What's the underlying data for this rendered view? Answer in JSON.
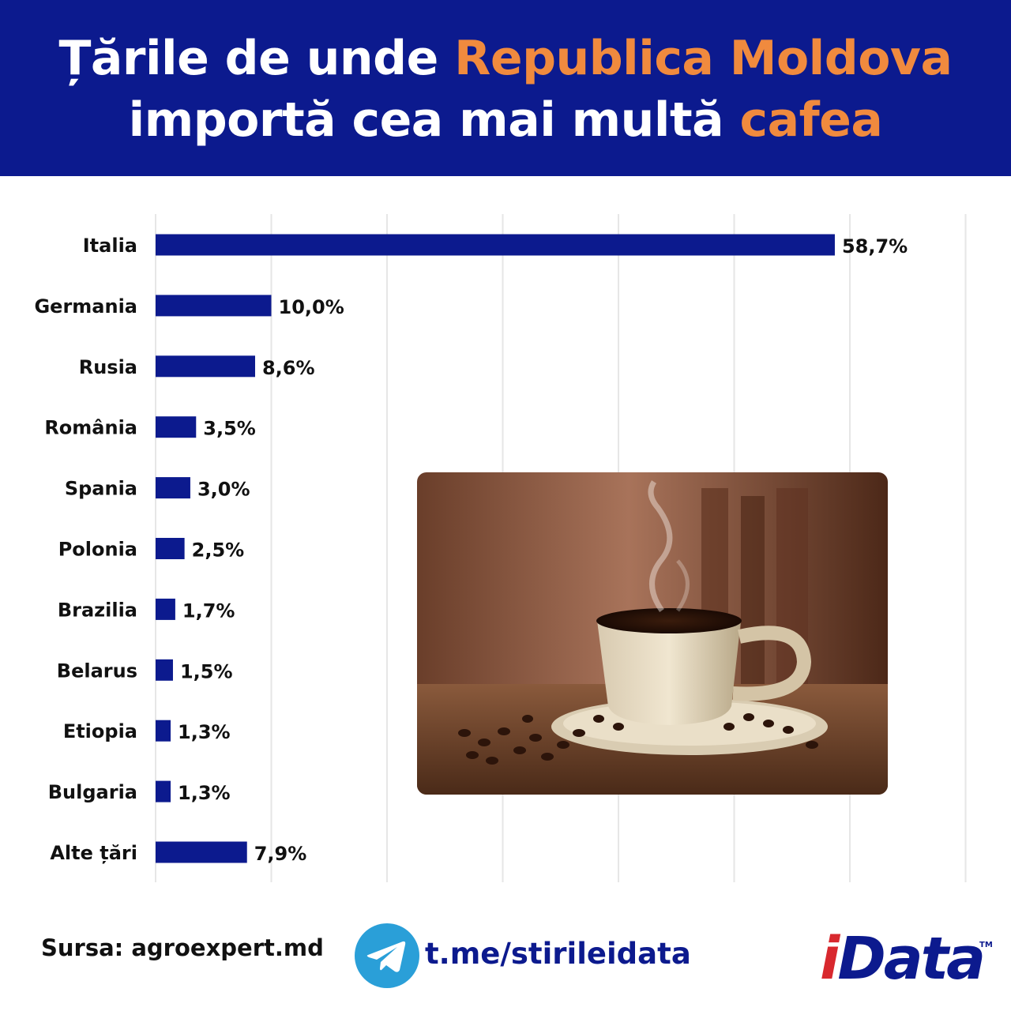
{
  "header": {
    "line1_part1": "Țările de unde ",
    "line1_part2": "Republica Moldova",
    "line2_part1": "importă cea mai multă ",
    "line2_part2": "cafea"
  },
  "colors": {
    "header_bg": "#0c1a8e",
    "accent": "#f08a3e",
    "bar": "#0c1a8e",
    "grid": "#e6e6e6"
  },
  "chart_data": {
    "type": "bar",
    "orientation": "horizontal",
    "categories": [
      "Italia",
      "Germania",
      "Rusia",
      "România",
      "Spania",
      "Polonia",
      "Brazilia",
      "Belarus",
      "Etiopia",
      "Bulgaria",
      "Alte țări"
    ],
    "values": [
      58.7,
      10.0,
      8.6,
      3.5,
      3.0,
      2.5,
      1.7,
      1.5,
      1.3,
      1.3,
      7.9
    ],
    "value_labels": [
      "58,7%",
      "10,0%",
      "8,6%",
      "3,5%",
      "3,0%",
      "2,5%",
      "1,7%",
      "1,5%",
      "1,3%",
      "1,3%",
      "7,9%"
    ],
    "xlim": [
      0,
      70
    ],
    "grid": true,
    "legend": "none"
  },
  "image": {
    "subject": "cup of coffee with coffee beans"
  },
  "footer": {
    "source": "Sursa: agroexpert.md",
    "telegram_icon": "telegram-icon",
    "telegram_link": "t.me/stirileidata",
    "logo_text": "iData",
    "logo_tm": "TM"
  }
}
